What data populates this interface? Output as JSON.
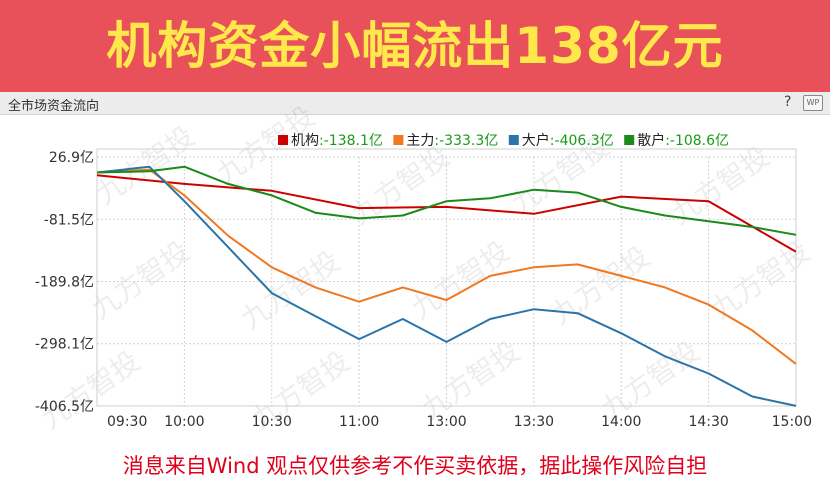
{
  "banner": {
    "title": "机构资金小幅流出138亿元"
  },
  "panel": {
    "title": "全市场资金流向",
    "help_glyph": "?",
    "wp_label": "WP"
  },
  "watermark": "九方智投",
  "footer": {
    "disclaimer": "消息来自Wind  观点仅供参考不作买卖依据，据此操作风险自担"
  },
  "colors": {
    "banner_bg": "#e8505a",
    "banner_text": "#ffe94a",
    "footer_text": "#e0001b",
    "value_text": "#1a9a1a"
  },
  "chart_data": {
    "type": "line",
    "title": "",
    "xlabel": "",
    "ylabel": "",
    "x_ticks": [
      "09:30",
      "10:00",
      "10:30",
      "11:00",
      "13:00",
      "13:30",
      "14:00",
      "14:30",
      "15:00"
    ],
    "y_ticks": [
      "26.9亿",
      "-81.5亿",
      "-189.8亿",
      "-298.1亿",
      "-406.5亿"
    ],
    "y_tick_values": [
      26.9,
      -81.5,
      -189.8,
      -298.1,
      -406.5
    ],
    "ylim": [
      -406.5,
      26.9
    ],
    "grid": true,
    "legend_position": "top-right",
    "series": [
      {
        "name": "机构",
        "value_label": ":-138.1亿",
        "color": "#cc0000",
        "x": [
          0,
          1,
          2,
          3,
          4,
          5,
          6,
          7,
          8
        ],
        "values": [
          -5,
          -20,
          -32,
          -62,
          -60,
          -72,
          -42,
          -50,
          -138.1
        ]
      },
      {
        "name": "主力",
        "value_label": ":-333.3亿",
        "color": "#f07820",
        "x": [
          0,
          0.6,
          1,
          1.5,
          2,
          2.5,
          3,
          3.5,
          4,
          4.5,
          5,
          5.5,
          6,
          6.5,
          7,
          7.5,
          8
        ],
        "values": [
          0,
          5,
          -40,
          -110,
          -165,
          -200,
          -225,
          -200,
          -222,
          -180,
          -165,
          -160,
          -180,
          -200,
          -230,
          -275,
          -333.3
        ]
      },
      {
        "name": "大户",
        "value_label": ":-406.3亿",
        "color": "#2a74a8",
        "x": [
          0,
          0.6,
          1,
          1.5,
          2,
          2.5,
          3,
          3.5,
          4,
          4.5,
          5,
          5.5,
          6,
          6.5,
          7,
          7.5,
          8
        ],
        "values": [
          0,
          10,
          -50,
          -130,
          -210,
          -250,
          -290,
          -255,
          -295,
          -255,
          -238,
          -245,
          -280,
          -320,
          -350,
          -390,
          -406.3
        ]
      },
      {
        "name": "散户",
        "value_label": ":-108.6亿",
        "color": "#1a8a1a",
        "x": [
          0,
          0.6,
          1,
          1.5,
          2,
          2.5,
          3,
          3.5,
          4,
          4.5,
          5,
          5.5,
          6,
          6.5,
          7,
          7.5,
          8
        ],
        "values": [
          0,
          2,
          10,
          -20,
          -40,
          -70,
          -80,
          -75,
          -50,
          -45,
          -30,
          -35,
          -60,
          -75,
          -85,
          -95,
          -108.6
        ]
      }
    ]
  }
}
